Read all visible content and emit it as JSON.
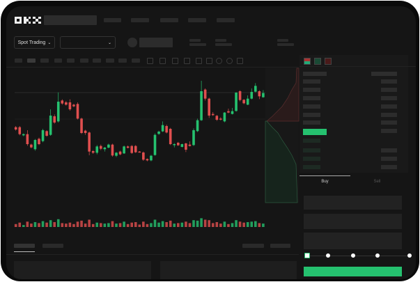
{
  "header": {
    "logo": "OKX"
  },
  "market": {
    "mode_label": "Spot Trading"
  },
  "order_panel": {
    "tabs": [
      {
        "label": "Buy",
        "active": true
      },
      {
        "label": "Sell",
        "active": false
      }
    ],
    "slider_percent": 0
  },
  "colors": {
    "up": "#25c16f",
    "down": "#e04f4f",
    "background": "#151515"
  },
  "chart_data": {
    "type": "candlestick",
    "title": "",
    "xlabel": "",
    "ylabel": "",
    "candles_ohlc": [
      [
        185,
        190,
        170,
        175
      ],
      [
        185,
        190,
        150,
        155
      ],
      [
        150,
        158,
        146,
        155
      ],
      [
        155,
        172,
        105,
        112
      ],
      [
        110,
        114,
        94,
        98
      ],
      [
        90,
        134,
        84,
        130
      ],
      [
        135,
        140,
        108,
        112
      ],
      [
        125,
        178,
        120,
        172
      ],
      [
        168,
        172,
        144,
        148
      ],
      [
        152,
        262,
        148,
        235
      ],
      [
        232,
        240,
        200,
        205
      ],
      [
        210,
        335,
        205,
        295
      ],
      [
        300,
        305,
        282,
        287
      ],
      [
        292,
        298,
        278,
        282
      ],
      [
        292,
        305,
        256,
        262
      ],
      [
        282,
        286,
        271,
        275
      ],
      [
        285,
        292,
        218,
        222
      ],
      [
        222,
        226,
        156,
        160
      ],
      [
        170,
        174,
        152,
        160
      ],
      [
        162,
        166,
        64,
        80
      ],
      [
        82,
        86,
        70,
        75
      ],
      [
        75,
        108,
        68,
        102
      ],
      [
        104,
        110,
        86,
        92
      ],
      [
        90,
        100,
        80,
        97
      ],
      [
        97,
        114,
        94,
        110
      ],
      [
        110,
        114,
        58,
        63
      ],
      [
        62,
        78,
        56,
        75
      ],
      [
        80,
        84,
        64,
        68
      ],
      [
        72,
        106,
        70,
        102
      ],
      [
        102,
        106,
        94,
        96
      ],
      [
        104,
        108,
        70,
        74
      ],
      [
        104,
        108,
        74,
        77
      ],
      [
        80,
        82,
        76,
        78
      ],
      [
        76,
        80,
        40,
        45
      ],
      [
        48,
        50,
        38,
        42
      ],
      [
        42,
        66,
        38,
        62
      ],
      [
        65,
        158,
        62,
        152
      ],
      [
        156,
        170,
        152,
        166
      ],
      [
        167,
        210,
        164,
        194
      ],
      [
        190,
        196,
        158,
        162
      ],
      [
        178,
        182,
        108,
        112
      ],
      [
        108,
        116,
        98,
        112
      ],
      [
        118,
        122,
        104,
        107
      ],
      [
        100,
        114,
        98,
        112
      ],
      [
        115,
        118,
        78,
        88
      ],
      [
        110,
        124,
        102,
        104
      ],
      [
        108,
        180,
        104,
        172
      ],
      [
        168,
        222,
        164,
        215
      ],
      [
        215,
        385,
        212,
        340
      ],
      [
        347,
        352,
        300,
        308
      ],
      [
        308,
        312,
        225,
        235
      ],
      [
        242,
        250,
        234,
        237
      ],
      [
        234,
        238,
        212,
        217
      ],
      [
        222,
        228,
        214,
        218
      ],
      [
        210,
        250,
        206,
        248
      ],
      [
        254,
        265,
        245,
        248
      ],
      [
        242,
        268,
        240,
        254
      ],
      [
        255,
        336,
        252,
        334
      ],
      [
        340,
        344,
        296,
        302
      ],
      [
        303,
        306,
        284,
        288
      ],
      [
        282,
        322,
        280,
        308
      ],
      [
        308,
        352,
        305,
        337
      ],
      [
        338,
        375,
        335,
        363
      ],
      [
        340,
        344,
        306,
        318
      ],
      [
        314,
        345,
        312,
        332
      ]
    ],
    "volumes": [
      30,
      45,
      20,
      55,
      35,
      50,
      40,
      60,
      45,
      70,
      50,
      80,
      40,
      35,
      45,
      30,
      55,
      65,
      35,
      75,
      30,
      45,
      40,
      35,
      40,
      60,
      35,
      40,
      55,
      30,
      45,
      50,
      25,
      55,
      30,
      40,
      75,
      45,
      60,
      50,
      65,
      35,
      40,
      45,
      55,
      40,
      70,
      65,
      90,
      75,
      70,
      40,
      50,
      35,
      55,
      30,
      40,
      70,
      55,
      45,
      50,
      55,
      60,
      40,
      35
    ]
  }
}
